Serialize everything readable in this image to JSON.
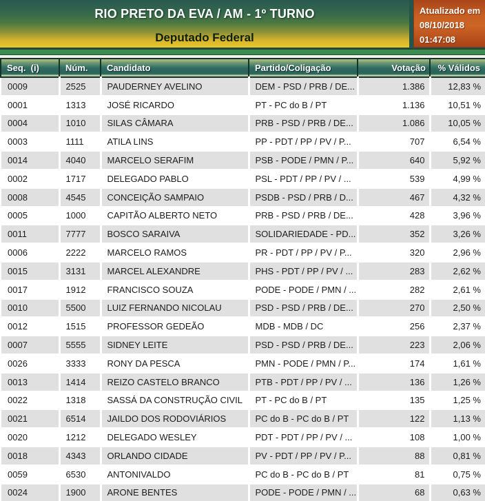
{
  "header": {
    "title": "RIO PRETO DA EVA / AM - 1º TURNO",
    "subtitle": "Deputado Federal",
    "updated_label": "Atualizado em",
    "updated_date": "08/10/2018",
    "updated_time": "01:47:08"
  },
  "colors": {
    "masthead_green": "#2b5950",
    "masthead_yellow": "#eac62e",
    "band_green": "#3e8b51",
    "header_teal": "#2e6b60",
    "updated_orange": "#cd6526",
    "row_gray": "#e0e0e0"
  },
  "table": {
    "columns": [
      "Seq.  (i)",
      "Núm.",
      "Candidato",
      "Partido/Coligação",
      "Votação",
      "% Válidos"
    ],
    "rows": [
      {
        "seq": "0009",
        "num": "2525",
        "candidato": "PAUDERNEY AVELINO",
        "partido": "DEM - PSD / PRB / DE...",
        "votacao": "1.386",
        "pct": "12,83 %"
      },
      {
        "seq": "0001",
        "num": "1313",
        "candidato": "JOSÉ RICARDO",
        "partido": "PT - PC do B / PT",
        "votacao": "1.136",
        "pct": "10,51 %"
      },
      {
        "seq": "0004",
        "num": "1010",
        "candidato": "SILAS CÂMARA",
        "partido": "PRB - PSD / PRB / DE...",
        "votacao": "1.086",
        "pct": "10,05 %"
      },
      {
        "seq": "0003",
        "num": "1111",
        "candidato": "ATILA LINS",
        "partido": "PP - PDT / PP / PV / P...",
        "votacao": "707",
        "pct": "6,54 %"
      },
      {
        "seq": "0014",
        "num": "4040",
        "candidato": "MARCELO SERAFIM",
        "partido": "PSB - PODE / PMN / P...",
        "votacao": "640",
        "pct": "5,92 %"
      },
      {
        "seq": "0002",
        "num": "1717",
        "candidato": "DELEGADO PABLO",
        "partido": "PSL - PDT / PP / PV / ...",
        "votacao": "539",
        "pct": "4,99 %"
      },
      {
        "seq": "0008",
        "num": "4545",
        "candidato": "CONCEIÇÃO SAMPAIO",
        "partido": "PSDB - PSD / PRB / D...",
        "votacao": "467",
        "pct": "4,32 %"
      },
      {
        "seq": "0005",
        "num": "1000",
        "candidato": "CAPITÃO ALBERTO NETO",
        "partido": "PRB - PSD / PRB / DE...",
        "votacao": "428",
        "pct": "3,96 %"
      },
      {
        "seq": "0011",
        "num": "7777",
        "candidato": "BOSCO SARAIVA",
        "partido": "SOLIDARIEDADE - PD...",
        "votacao": "352",
        "pct": "3,26 %"
      },
      {
        "seq": "0006",
        "num": "2222",
        "candidato": "MARCELO RAMOS",
        "partido": "PR - PDT / PP / PV / P...",
        "votacao": "320",
        "pct": "2,96 %"
      },
      {
        "seq": "0015",
        "num": "3131",
        "candidato": "MARCEL ALEXANDRE",
        "partido": "PHS - PDT / PP / PV / ...",
        "votacao": "283",
        "pct": "2,62 %"
      },
      {
        "seq": "0017",
        "num": "1912",
        "candidato": "FRANCISCO SOUZA",
        "partido": "PODE - PODE / PMN / ...",
        "votacao": "282",
        "pct": "2,61 %"
      },
      {
        "seq": "0010",
        "num": "5500",
        "candidato": "LUIZ FERNANDO NICOLAU",
        "partido": "PSD - PSD / PRB / DE...",
        "votacao": "270",
        "pct": "2,50 %"
      },
      {
        "seq": "0012",
        "num": "1515",
        "candidato": "PROFESSOR GEDEÃO",
        "partido": "MDB - MDB / DC",
        "votacao": "256",
        "pct": "2,37 %"
      },
      {
        "seq": "0007",
        "num": "5555",
        "candidato": "SIDNEY LEITE",
        "partido": "PSD - PSD / PRB / DE...",
        "votacao": "223",
        "pct": "2,06 %"
      },
      {
        "seq": "0026",
        "num": "3333",
        "candidato": "RONY DA PESCA",
        "partido": "PMN - PODE / PMN / P...",
        "votacao": "174",
        "pct": "1,61 %"
      },
      {
        "seq": "0013",
        "num": "1414",
        "candidato": "REIZO CASTELO BRANCO",
        "partido": "PTB - PDT / PP / PV / ...",
        "votacao": "136",
        "pct": "1,26 %"
      },
      {
        "seq": "0022",
        "num": "1318",
        "candidato": "SASSÁ DA CONSTRUÇÃO CIVIL",
        "partido": "PT - PC do B / PT",
        "votacao": "135",
        "pct": "1,25 %"
      },
      {
        "seq": "0021",
        "num": "6514",
        "candidato": "JAILDO DOS RODOVIÁRIOS",
        "partido": "PC do B - PC do B / PT",
        "votacao": "122",
        "pct": "1,13 %"
      },
      {
        "seq": "0020",
        "num": "1212",
        "candidato": "DELEGADO WESLEY",
        "partido": "PDT - PDT / PP / PV / ...",
        "votacao": "108",
        "pct": "1,00 %"
      },
      {
        "seq": "0018",
        "num": "4343",
        "candidato": "ORLANDO CIDADE",
        "partido": "PV - PDT / PP / PV / P...",
        "votacao": "88",
        "pct": "0,81 %"
      },
      {
        "seq": "0059",
        "num": "6530",
        "candidato": "ANTONIVALDO",
        "partido": "PC do B - PC do B / PT",
        "votacao": "81",
        "pct": "0,75 %"
      },
      {
        "seq": "0024",
        "num": "1900",
        "candidato": "ARONE BENTES",
        "partido": "PODE - PODE / PMN / ...",
        "votacao": "68",
        "pct": "0,63 %"
      }
    ]
  }
}
